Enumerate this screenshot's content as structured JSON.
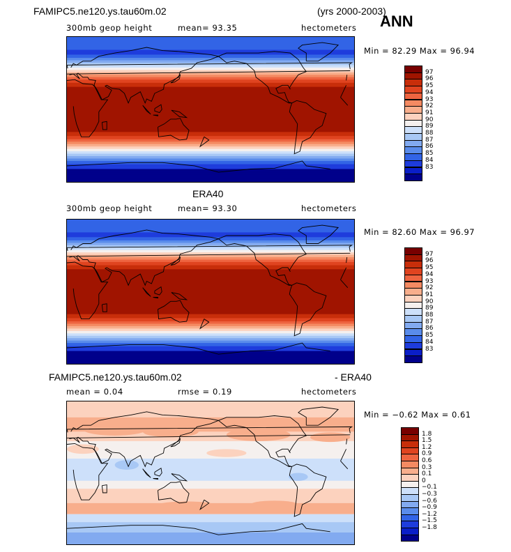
{
  "header": {
    "case_name": "FAMIPC5.ne120.ys.tau60m.02",
    "years": "(yrs 2000-2003)",
    "season": "ANN"
  },
  "panels": [
    {
      "id": "model",
      "title": "",
      "left_label": "300mb geop height",
      "middle_label": "mean=  93.35",
      "right_label": "hectometers",
      "minmax": "Min =  82.29  Max =  96.94",
      "colors": [
        "#00008b",
        "#0a1ec8",
        "#1e3cdc",
        "#3264e6",
        "#5a8ceb",
        "#82aaf0",
        "#a8c8f5",
        "#cde0fa",
        "#f5f0ee",
        "#fcd2be",
        "#f8ae8c",
        "#f48a62",
        "#ee6440",
        "#e04420",
        "#c82e0a",
        "#a01400",
        "#780000"
      ],
      "levels": [
        "83",
        "84",
        "85",
        "86",
        "87",
        "88",
        "89",
        "90",
        "91",
        "92",
        "93",
        "94",
        "95",
        "96",
        "97"
      ]
    },
    {
      "id": "obs",
      "title": "ERA40",
      "left_label": "300mb geop height",
      "middle_label": "mean=  93.30",
      "right_label": "hectometers",
      "minmax": "Min =  82.60  Max =  96.97",
      "colors": [
        "#00008b",
        "#0a1ec8",
        "#1e3cdc",
        "#3264e6",
        "#5a8ceb",
        "#82aaf0",
        "#a8c8f5",
        "#cde0fa",
        "#f5f0ee",
        "#fcd2be",
        "#f8ae8c",
        "#f48a62",
        "#ee6440",
        "#e04420",
        "#c82e0a",
        "#a01400",
        "#780000"
      ],
      "levels": [
        "83",
        "84",
        "85",
        "86",
        "87",
        "88",
        "89",
        "90",
        "91",
        "92",
        "93",
        "94",
        "95",
        "96",
        "97"
      ]
    },
    {
      "id": "diff",
      "title_left": "FAMIPC5.ne120.ys.tau60m.02",
      "title_right": "- ERA40",
      "left_label": "mean =    0.04",
      "middle_label": "rmse =    0.19",
      "right_label": "hectometers",
      "minmax": "Min =  −0.62  Max =    0.61",
      "colors": [
        "#00008b",
        "#0a1ec8",
        "#1e3cdc",
        "#3264e6",
        "#5a8ceb",
        "#82aaf0",
        "#a8c8f5",
        "#cde0fa",
        "#f5f0ee",
        "#fcd2be",
        "#f8ae8c",
        "#f48a62",
        "#ee6440",
        "#e04420",
        "#c82e0a",
        "#a01400",
        "#780000"
      ],
      "levels": [
        "−1.8",
        "−1.5",
        "−1.2",
        "−0.9",
        "−0.6",
        "−0.3",
        "−0.1",
        "0",
        "0.1",
        "0.3",
        "0.6",
        "0.9",
        "1.2",
        "1.5",
        "1.8"
      ]
    }
  ]
}
